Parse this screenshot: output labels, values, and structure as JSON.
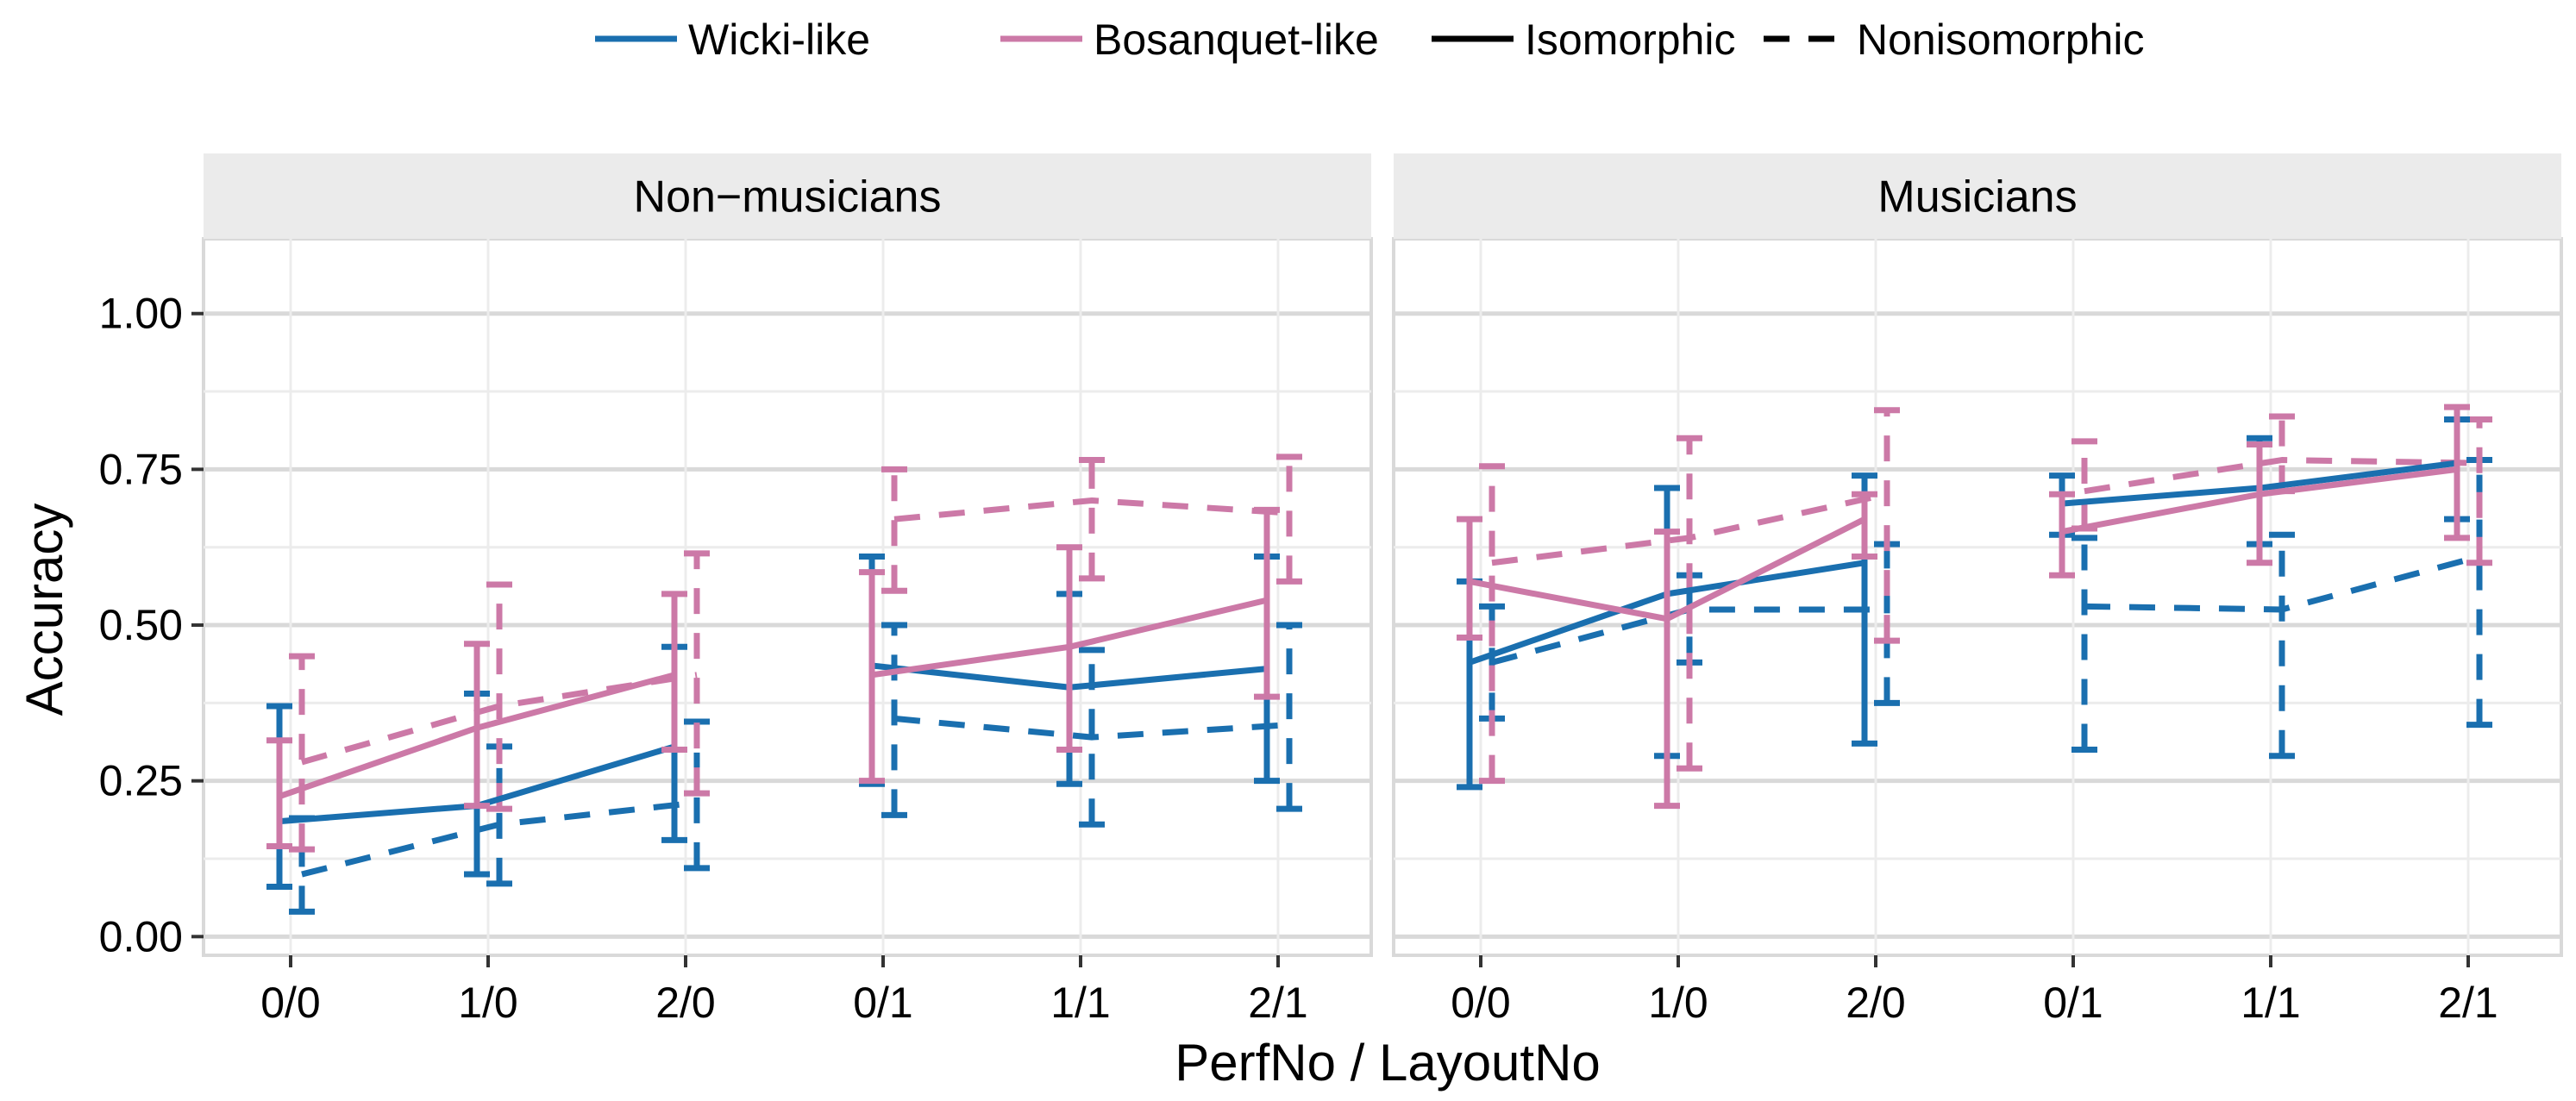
{
  "chart_data": {
    "type": "line",
    "xlabel": "PerfNo / LayoutNo",
    "ylabel": "Accuracy",
    "ylim": [
      -0.03,
      1.12
    ],
    "categories": [
      "0/0",
      "1/0",
      "2/0",
      "0/1",
      "1/1",
      "2/1"
    ],
    "y_ticks": [
      0.0,
      0.25,
      0.5,
      0.75,
      1.0
    ],
    "y_tick_labels": [
      "0.00",
      "0.25",
      "0.50",
      "0.75",
      "1.00"
    ],
    "grid": true,
    "legend": {
      "position": "top",
      "color_entries": [
        {
          "label": "Wicki-like",
          "color": "#1a6faf"
        },
        {
          "label": "Bosanquet-like",
          "color": "#cc79a7"
        }
      ],
      "linetype_entries": [
        {
          "label": "Isomorphic",
          "dash": "solid"
        },
        {
          "label": "Nonisomorphic",
          "dash": "dashed"
        }
      ]
    },
    "panels": [
      {
        "name": "Non−musicians",
        "series": [
          {
            "layout": "Wicki-like",
            "type": "Isomorphic",
            "color": "#1a6faf",
            "dash": "solid",
            "side": "left",
            "values": [
              0.185,
              0.21,
              0.305,
              0.435,
              0.4,
              0.43
            ],
            "lower": [
              0.08,
              0.1,
              0.155,
              0.245,
              0.245,
              0.25
            ],
            "upper": [
              0.37,
              0.39,
              0.465,
              0.61,
              0.55,
              0.61
            ]
          },
          {
            "layout": "Bosanquet-like",
            "type": "Isomorphic",
            "color": "#cc79a7",
            "dash": "solid",
            "side": "left",
            "values": [
              0.225,
              0.335,
              0.42,
              0.42,
              0.465,
              0.54
            ],
            "lower": [
              0.145,
              0.21,
              0.3,
              0.25,
              0.3,
              0.385
            ],
            "upper": [
              0.315,
              0.47,
              0.55,
              0.585,
              0.625,
              0.685
            ]
          },
          {
            "layout": "Wicki-like",
            "type": "Nonisomorphic",
            "color": "#1a6faf",
            "dash": "dashed",
            "side": "right",
            "values": [
              0.1,
              0.18,
              0.215,
              0.35,
              0.32,
              0.34
            ],
            "lower": [
              0.04,
              0.085,
              0.11,
              0.195,
              0.18,
              0.205
            ],
            "upper": [
              0.19,
              0.305,
              0.345,
              0.5,
              0.46,
              0.5
            ]
          },
          {
            "layout": "Bosanquet-like",
            "type": "Nonisomorphic",
            "color": "#cc79a7",
            "dash": "dashed",
            "side": "right",
            "values": [
              0.28,
              0.37,
              0.42,
              0.67,
              0.7,
              0.68
            ],
            "lower": [
              0.14,
              0.205,
              0.23,
              0.555,
              0.575,
              0.57
            ],
            "upper": [
              0.45,
              0.565,
              0.615,
              0.75,
              0.765,
              0.77
            ]
          }
        ]
      },
      {
        "name": "Musicians",
        "series": [
          {
            "layout": "Wicki-like",
            "type": "Isomorphic",
            "color": "#1a6faf",
            "dash": "solid",
            "side": "left",
            "values": [
              0.44,
              0.55,
              0.6,
              0.695,
              0.72,
              0.76
            ],
            "lower": [
              0.24,
              0.29,
              0.31,
              0.645,
              0.63,
              0.67
            ],
            "upper": [
              0.57,
              0.72,
              0.74,
              0.74,
              0.8,
              0.83
            ]
          },
          {
            "layout": "Bosanquet-like",
            "type": "Isomorphic",
            "color": "#cc79a7",
            "dash": "solid",
            "side": "left",
            "values": [
              0.57,
              0.51,
              0.67,
              0.65,
              0.71,
              0.75
            ],
            "lower": [
              0.48,
              0.21,
              0.61,
              0.58,
              0.6,
              0.64
            ],
            "upper": [
              0.67,
              0.65,
              0.71,
              0.71,
              0.79,
              0.85
            ]
          },
          {
            "layout": "Wicki-like",
            "type": "Nonisomorphic",
            "color": "#1a6faf",
            "dash": "dashed",
            "side": "right",
            "values": [
              0.44,
              0.525,
              0.525,
              0.53,
              0.525,
              0.61
            ],
            "lower": [
              0.35,
              0.44,
              0.375,
              0.3,
              0.29,
              0.34
            ],
            "upper": [
              0.53,
              0.58,
              0.63,
              0.64,
              0.645,
              0.765
            ]
          },
          {
            "layout": "Bosanquet-like",
            "type": "Nonisomorphic",
            "color": "#cc79a7",
            "dash": "dashed",
            "side": "right",
            "values": [
              0.6,
              0.64,
              0.71,
              0.715,
              0.765,
              0.76
            ],
            "lower": [
              0.25,
              0.27,
              0.475,
              0.655,
              0.715,
              0.6
            ],
            "upper": [
              0.755,
              0.8,
              0.845,
              0.795,
              0.835,
              0.83
            ]
          }
        ]
      }
    ]
  }
}
